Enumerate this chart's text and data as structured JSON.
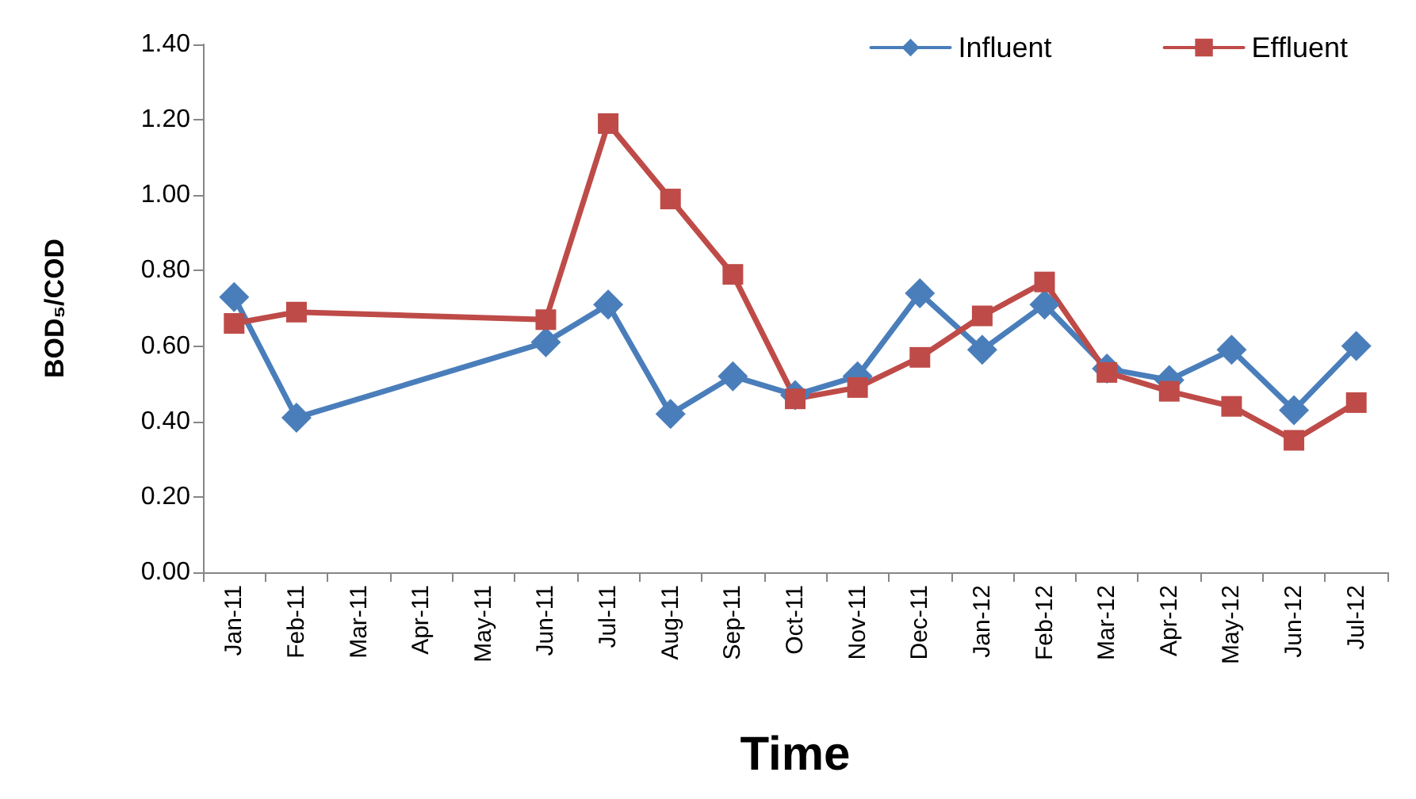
{
  "chart_data": {
    "type": "line",
    "xlabel": "Time",
    "ylabel": "BOD₅/COD",
    "categories": [
      "Jan-11",
      "Feb-11",
      "Mar-11",
      "Apr-11",
      "May-11",
      "Jun-11",
      "Jul-11",
      "Aug-11",
      "Sep-11",
      "Oct-11",
      "Nov-11",
      "Dec-11",
      "Jan-12",
      "Feb-12",
      "Mar-12",
      "Apr-12",
      "May-12",
      "Jun-12",
      "Jul-12"
    ],
    "series": [
      {
        "name": "Influent",
        "color": "#4a7ebb",
        "marker": "diamond",
        "values": [
          0.73,
          0.41,
          null,
          null,
          null,
          0.61,
          0.71,
          0.42,
          0.52,
          0.47,
          0.52,
          0.74,
          0.59,
          0.71,
          0.54,
          0.51,
          0.59,
          0.43,
          0.6
        ]
      },
      {
        "name": "Effluent",
        "color": "#be4b48",
        "marker": "square",
        "values": [
          0.66,
          0.69,
          null,
          null,
          null,
          0.67,
          1.19,
          0.99,
          0.79,
          0.46,
          0.49,
          0.57,
          0.68,
          0.77,
          0.53,
          0.48,
          0.44,
          0.35,
          0.45
        ]
      }
    ],
    "ylim": [
      0,
      1.4
    ],
    "yticks": [
      {
        "value": 0,
        "label": "0.00"
      },
      {
        "value": 0.2,
        "label": "0.20"
      },
      {
        "value": 0.4,
        "label": "0.40"
      },
      {
        "value": 0.6,
        "label": "0.60"
      },
      {
        "value": 0.8,
        "label": "0.80"
      },
      {
        "value": 1,
        "label": "1.00"
      },
      {
        "value": 1.2,
        "label": "1.20"
      },
      {
        "value": 1.4,
        "label": "1.40"
      }
    ],
    "grid": false,
    "legend": "top right",
    "line_style": "solid"
  }
}
